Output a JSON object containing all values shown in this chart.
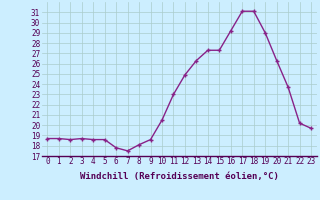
{
  "hours": [
    0,
    1,
    2,
    3,
    4,
    5,
    6,
    7,
    8,
    9,
    10,
    11,
    12,
    13,
    14,
    15,
    16,
    17,
    18,
    19,
    20,
    21,
    22,
    23
  ],
  "values": [
    18.7,
    18.7,
    18.6,
    18.7,
    18.6,
    18.6,
    17.8,
    17.5,
    18.1,
    18.6,
    20.5,
    23.0,
    24.9,
    26.3,
    27.3,
    27.3,
    29.2,
    31.1,
    31.1,
    29.0,
    26.3,
    23.7,
    20.2,
    19.7
  ],
  "line_color": "#882288",
  "marker": "+",
  "bg_color": "#cceeff",
  "grid_color": "#aacccc",
  "xlabel": "Windchill (Refroidissement éolien,°C)",
  "ylim_min": 17,
  "ylim_max": 32,
  "yticks": [
    17,
    18,
    19,
    20,
    21,
    22,
    23,
    24,
    25,
    26,
    27,
    28,
    29,
    30,
    31
  ],
  "xticks": [
    0,
    1,
    2,
    3,
    4,
    5,
    6,
    7,
    8,
    9,
    10,
    11,
    12,
    13,
    14,
    15,
    16,
    17,
    18,
    19,
    20,
    21,
    22,
    23
  ],
  "tick_fontsize": 5.5,
  "xlabel_fontsize": 6.5,
  "line_width": 1.0,
  "marker_size": 3.5,
  "marker_edge_width": 1.0
}
